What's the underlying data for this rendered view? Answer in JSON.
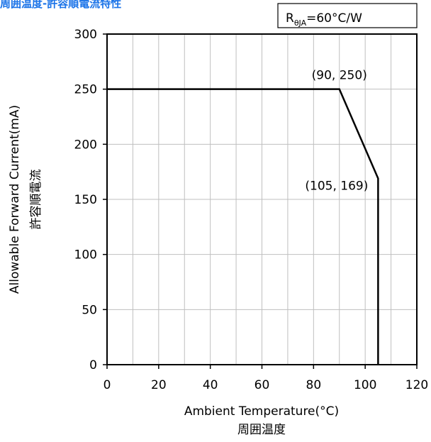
{
  "title": "周囲温度-許容順電流特性",
  "chart_data": {
    "type": "line",
    "title": "周囲温度-許容順電流特性",
    "xlabel": "Ambient Temperature(°C)",
    "xlabel_jp": "周囲温度",
    "ylabel": "Allowable Forward Current(mA)",
    "ylabel_jp": "許容順電流",
    "xlim": [
      0,
      120
    ],
    "ylim": [
      0,
      300
    ],
    "x_ticks": [
      0,
      20,
      40,
      60,
      80,
      100,
      120
    ],
    "y_ticks": [
      0,
      50,
      100,
      150,
      200,
      250,
      300
    ],
    "x_grid_step": 10,
    "y_grid_step": 50,
    "grid": true,
    "series": [
      {
        "x": [
          0,
          90,
          105,
          105
        ],
        "y": [
          250,
          250,
          169,
          0
        ]
      }
    ],
    "annotations": [
      {
        "text": "(90, 250)",
        "x": 90,
        "y": 250
      },
      {
        "text": "(105, 169)",
        "x": 105,
        "y": 169
      }
    ],
    "legend": {
      "main": "R",
      "sub": "θJA",
      "rest": "=60°C/W",
      "placement": "top-right"
    },
    "colors": {
      "title": "#1a73e8",
      "line": "#000000",
      "grid": "#bfbfbf"
    }
  }
}
